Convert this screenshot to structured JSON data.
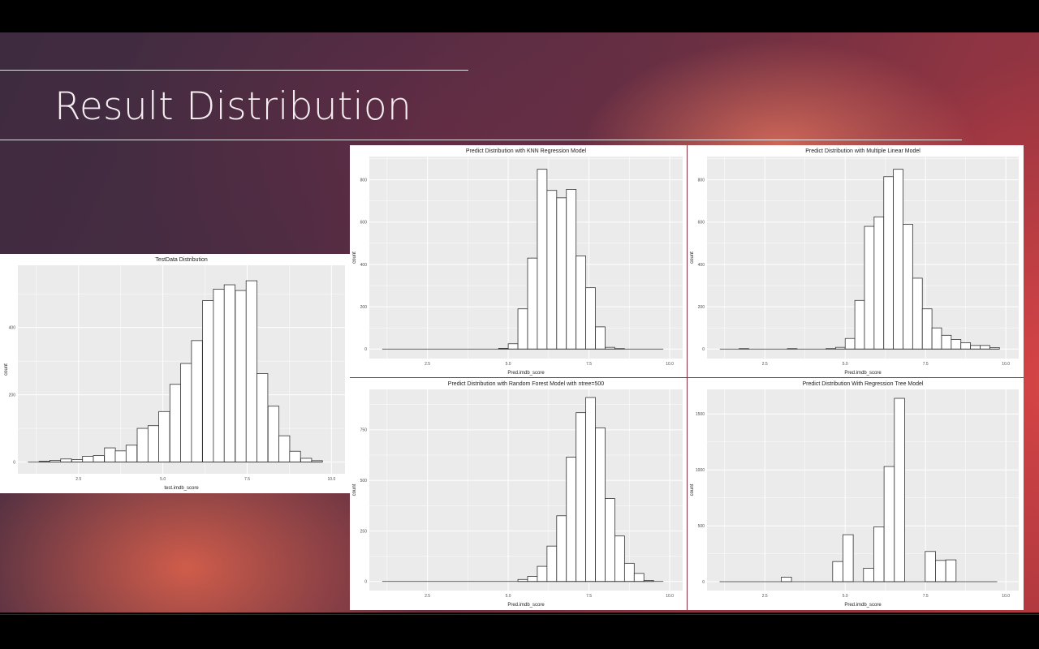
{
  "slide": {
    "title": "Result Distribution"
  },
  "colors": {
    "panel_bg": "#ebebeb",
    "grid": "#ffffff",
    "bar_fill": "#ffffff",
    "bar_stroke": "#333333",
    "text": "#222222",
    "tick_text": "#4d4d4d"
  },
  "chart_data": [
    {
      "type": "bar",
      "title": "TestData Distribution",
      "xlabel": "test.imdb_score",
      "ylabel": "count",
      "xlim": [
        0.7,
        10.4
      ],
      "ylim": [
        -35,
        585
      ],
      "x_ticks": [
        2.5,
        5.0,
        7.5,
        10.0
      ],
      "x_tick_labels": [
        "2.5",
        "5.0",
        "7.5",
        "10.0"
      ],
      "y_ticks": [
        0,
        200,
        400
      ],
      "y_tick_labels": [
        "0",
        "200",
        "400"
      ],
      "grid": true,
      "bin_width": 0.323,
      "bin_centers": [
        1.16,
        1.49,
        1.81,
        2.13,
        2.46,
        2.78,
        3.1,
        3.43,
        3.75,
        4.07,
        4.4,
        4.72,
        5.04,
        5.37,
        5.69,
        6.01,
        6.34,
        6.66,
        6.98,
        7.31,
        7.63,
        7.95,
        8.28,
        8.6,
        8.92,
        9.25,
        9.57
      ],
      "values": [
        0,
        2,
        5,
        9,
        7,
        17,
        19,
        42,
        33,
        50,
        100,
        108,
        150,
        231,
        293,
        361,
        480,
        514,
        527,
        510,
        539,
        263,
        166,
        78,
        32,
        11,
        4
      ]
    },
    {
      "type": "bar",
      "title": "Predict Distribution with KNN Regression Model",
      "xlabel": "Pred.imdb_score",
      "ylabel": "count",
      "xlim": [
        0.7,
        10.4
      ],
      "ylim": [
        -45,
        910
      ],
      "x_ticks": [
        2.5,
        5.0,
        7.5,
        10.0
      ],
      "x_tick_labels": [
        "2.5",
        "5.0",
        "7.5",
        "10.0"
      ],
      "y_ticks": [
        0,
        200,
        400,
        600,
        800
      ],
      "y_tick_labels": [
        "0",
        "200",
        "400",
        "600",
        "800"
      ],
      "grid": true,
      "bin_width": 0.3,
      "bin_centers": [
        1.25,
        1.55,
        1.85,
        2.15,
        2.45,
        2.75,
        3.05,
        3.35,
        3.65,
        3.95,
        4.25,
        4.55,
        4.85,
        5.15,
        5.45,
        5.75,
        6.05,
        6.35,
        6.65,
        6.95,
        7.25,
        7.55,
        7.85,
        8.15,
        8.45,
        8.75,
        9.05,
        9.35,
        9.65
      ],
      "values": [
        0,
        0,
        0,
        0,
        0,
        0,
        0,
        0,
        0,
        0,
        0,
        0,
        3,
        25,
        190,
        430,
        850,
        750,
        715,
        755,
        440,
        290,
        105,
        8,
        2,
        0,
        0,
        0,
        0
      ]
    },
    {
      "type": "bar",
      "title": "Predict Distribution with Multiple Linear Model",
      "xlabel": "Pred.imdb_score",
      "ylabel": "count",
      "xlim": [
        0.7,
        10.4
      ],
      "ylim": [
        -45,
        910
      ],
      "x_ticks": [
        2.5,
        5.0,
        7.5,
        10.0
      ],
      "x_tick_labels": [
        "2.5",
        "5.0",
        "7.5",
        "10.0"
      ],
      "y_ticks": [
        0,
        200,
        400,
        600,
        800
      ],
      "y_tick_labels": [
        "0",
        "200",
        "400",
        "600",
        "800"
      ],
      "grid": true,
      "bin_width": 0.3,
      "bin_centers": [
        1.25,
        1.55,
        1.85,
        2.15,
        2.45,
        2.75,
        3.05,
        3.35,
        3.65,
        3.95,
        4.25,
        4.55,
        4.85,
        5.15,
        5.45,
        5.75,
        6.05,
        6.35,
        6.65,
        6.95,
        7.25,
        7.55,
        7.85,
        8.15,
        8.45,
        8.75,
        9.05,
        9.35,
        9.65
      ],
      "values": [
        0,
        0,
        2,
        0,
        0,
        0,
        0,
        2,
        0,
        0,
        0,
        2,
        8,
        50,
        230,
        580,
        625,
        815,
        850,
        590,
        335,
        190,
        100,
        65,
        45,
        30,
        17,
        17,
        7
      ]
    },
    {
      "type": "bar",
      "title": "Predict Distribution with Random Forest Model with ntree=500",
      "xlabel": "Pred.imdb_score",
      "ylabel": "count",
      "xlim": [
        0.7,
        10.4
      ],
      "ylim": [
        -45,
        950
      ],
      "x_ticks": [
        2.5,
        5.0,
        7.5,
        10.0
      ],
      "x_tick_labels": [
        "2.5",
        "5.0",
        "7.5",
        "10.0"
      ],
      "y_ticks": [
        0,
        250,
        500,
        750
      ],
      "y_tick_labels": [
        "0",
        "250",
        "500",
        "750"
      ],
      "grid": true,
      "bin_width": 0.3,
      "bin_centers": [
        1.25,
        1.55,
        1.85,
        2.15,
        2.45,
        2.75,
        3.05,
        3.35,
        3.65,
        3.95,
        4.25,
        4.55,
        4.85,
        5.15,
        5.45,
        5.75,
        6.05,
        6.35,
        6.65,
        6.95,
        7.25,
        7.55,
        7.85,
        8.15,
        8.45,
        8.75,
        9.05,
        9.35,
        9.65
      ],
      "values": [
        0,
        0,
        0,
        0,
        0,
        0,
        0,
        0,
        0,
        0,
        0,
        0,
        0,
        0,
        10,
        25,
        75,
        175,
        325,
        615,
        835,
        910,
        760,
        410,
        225,
        90,
        40,
        5,
        0
      ]
    },
    {
      "type": "bar",
      "title": "Predict Distribution With Regression Tree Model",
      "xlabel": "Pred.imdb_score",
      "ylabel": "count",
      "xlim": [
        0.7,
        10.4
      ],
      "ylim": [
        -80,
        1720
      ],
      "x_ticks": [
        2.5,
        5.0,
        7.5,
        10.0
      ],
      "x_tick_labels": [
        "2.5",
        "5.0",
        "7.5",
        "10.0"
      ],
      "y_ticks": [
        0,
        500,
        1000,
        1500
      ],
      "y_tick_labels": [
        "0",
        "500",
        "1000",
        "1500"
      ],
      "grid": true,
      "bin_width": 0.32,
      "bin_centers": [
        1.25,
        1.57,
        1.89,
        2.21,
        2.53,
        2.85,
        3.17,
        3.49,
        3.81,
        4.13,
        4.45,
        4.77,
        5.09,
        5.41,
        5.73,
        6.05,
        6.37,
        6.69,
        7.01,
        7.33,
        7.65,
        7.97,
        8.29,
        8.61,
        8.93,
        9.25,
        9.57
      ],
      "values": [
        0,
        0,
        0,
        0,
        0,
        0,
        40,
        0,
        0,
        0,
        0,
        180,
        420,
        0,
        120,
        490,
        1030,
        1640,
        0,
        0,
        270,
        190,
        195,
        0,
        0,
        0,
        0
      ]
    }
  ]
}
